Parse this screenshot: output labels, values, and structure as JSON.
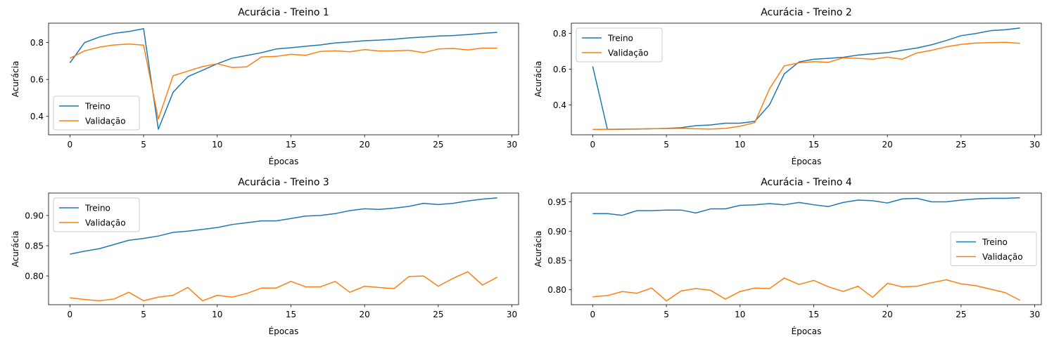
{
  "figure": {
    "colors": {
      "treino": "#1f77b4",
      "validacao": "#ff7f0e"
    }
  },
  "chart_data": [
    {
      "type": "line",
      "title": "Acurácia - Treino 1",
      "xlabel": "Épocas",
      "ylabel": "Acurácia",
      "xlim": [
        -1.45,
        30.45
      ],
      "ylim": [
        0.3,
        0.905
      ],
      "xticks": [
        0,
        5,
        10,
        15,
        20,
        25,
        30
      ],
      "yticks": [
        0.4,
        0.6,
        0.8
      ],
      "ytick_labels": [
        "0.4",
        "0.6",
        "0.8"
      ],
      "legend": "lower-left",
      "grid": false,
      "x": [
        0,
        1,
        2,
        3,
        4,
        5,
        6,
        7,
        8,
        9,
        10,
        11,
        12,
        13,
        14,
        15,
        16,
        17,
        18,
        19,
        20,
        21,
        22,
        23,
        24,
        25,
        26,
        27,
        28,
        29
      ],
      "series": [
        {
          "name": "Treino",
          "color": "#1f77b4",
          "values": [
            0.69,
            0.8,
            0.83,
            0.85,
            0.86,
            0.875,
            0.33,
            0.53,
            0.615,
            0.65,
            0.685,
            0.715,
            0.73,
            0.745,
            0.765,
            0.772,
            0.78,
            0.787,
            0.798,
            0.803,
            0.81,
            0.813,
            0.818,
            0.825,
            0.83,
            0.835,
            0.838,
            0.843,
            0.85,
            0.855
          ]
        },
        {
          "name": "Validação",
          "color": "#ff7f0e",
          "values": [
            0.715,
            0.755,
            0.775,
            0.787,
            0.792,
            0.786,
            0.385,
            0.62,
            0.645,
            0.67,
            0.685,
            0.665,
            0.668,
            0.722,
            0.725,
            0.736,
            0.731,
            0.752,
            0.755,
            0.75,
            0.762,
            0.754,
            0.755,
            0.758,
            0.745,
            0.765,
            0.768,
            0.76,
            0.77,
            0.77
          ]
        }
      ]
    },
    {
      "type": "line",
      "title": "Acurácia - Treino 2",
      "xlabel": "Épocas",
      "ylabel": "Acurácia",
      "xlim": [
        -1.45,
        30.45
      ],
      "ylim": [
        0.232,
        0.857
      ],
      "xticks": [
        0,
        5,
        10,
        15,
        20,
        25,
        30
      ],
      "yticks": [
        0.4,
        0.6,
        0.8
      ],
      "ytick_labels": [
        "0.4",
        "0.6",
        "0.8"
      ],
      "legend": "upper-left",
      "grid": false,
      "x": [
        0,
        1,
        2,
        3,
        4,
        5,
        6,
        7,
        8,
        9,
        10,
        11,
        12,
        13,
        14,
        15,
        16,
        17,
        18,
        19,
        20,
        21,
        22,
        23,
        24,
        25,
        26,
        27,
        28,
        29
      ],
      "series": [
        {
          "name": "Treino",
          "color": "#1f77b4",
          "values": [
            0.615,
            0.262,
            0.263,
            0.264,
            0.266,
            0.268,
            0.272,
            0.283,
            0.287,
            0.297,
            0.297,
            0.307,
            0.4,
            0.573,
            0.64,
            0.655,
            0.66,
            0.666,
            0.678,
            0.686,
            0.692,
            0.705,
            0.718,
            0.736,
            0.76,
            0.787,
            0.799,
            0.815,
            0.82,
            0.83
          ]
        },
        {
          "name": "Validação",
          "color": "#ff7f0e",
          "values": [
            0.262,
            0.263,
            0.264,
            0.265,
            0.266,
            0.267,
            0.268,
            0.266,
            0.264,
            0.268,
            0.28,
            0.3,
            0.49,
            0.618,
            0.635,
            0.642,
            0.638,
            0.663,
            0.66,
            0.655,
            0.667,
            0.655,
            0.69,
            0.705,
            0.725,
            0.738,
            0.746,
            0.748,
            0.75,
            0.744
          ]
        }
      ]
    },
    {
      "type": "line",
      "title": "Acurácia - Treino 3",
      "xlabel": "Épocas",
      "ylabel": "Acurácia",
      "xlim": [
        -1.45,
        30.45
      ],
      "ylim": [
        0.7525,
        0.937
      ],
      "xticks": [
        0,
        5,
        10,
        15,
        20,
        25,
        30
      ],
      "yticks": [
        0.8,
        0.85,
        0.9
      ],
      "ytick_labels": [
        "0.80",
        "0.85",
        "0.90"
      ],
      "legend": "upper-left",
      "grid": false,
      "x": [
        0,
        1,
        2,
        3,
        4,
        5,
        6,
        7,
        8,
        9,
        10,
        11,
        12,
        13,
        14,
        15,
        16,
        17,
        18,
        19,
        20,
        21,
        22,
        23,
        24,
        25,
        26,
        27,
        28,
        29
      ],
      "series": [
        {
          "name": "Treino",
          "color": "#1f77b4",
          "values": [
            0.836,
            0.841,
            0.845,
            0.852,
            0.859,
            0.862,
            0.866,
            0.872,
            0.874,
            0.877,
            0.88,
            0.885,
            0.888,
            0.891,
            0.891,
            0.895,
            0.899,
            0.9,
            0.903,
            0.908,
            0.911,
            0.91,
            0.912,
            0.915,
            0.92,
            0.918,
            0.92,
            0.924,
            0.927,
            0.929
          ]
        },
        {
          "name": "Validação",
          "color": "#ff7f0e",
          "values": [
            0.764,
            0.761,
            0.759,
            0.762,
            0.773,
            0.759,
            0.765,
            0.768,
            0.781,
            0.759,
            0.768,
            0.765,
            0.771,
            0.78,
            0.78,
            0.791,
            0.782,
            0.782,
            0.791,
            0.773,
            0.783,
            0.781,
            0.779,
            0.799,
            0.8,
            0.783,
            0.796,
            0.807,
            0.785,
            0.798
          ]
        }
      ]
    },
    {
      "type": "line",
      "title": "Acurácia - Treino 4",
      "xlabel": "Épocas",
      "ylabel": "Acurácia",
      "xlim": [
        -1.45,
        30.45
      ],
      "ylim": [
        0.7745,
        0.965
      ],
      "xticks": [
        0,
        5,
        10,
        15,
        20,
        25,
        30
      ],
      "yticks": [
        0.8,
        0.85,
        0.9,
        0.95
      ],
      "ytick_labels": [
        "0.80",
        "0.85",
        "0.90",
        "0.95"
      ],
      "legend": "center-right",
      "grid": false,
      "x": [
        0,
        1,
        2,
        3,
        4,
        5,
        6,
        7,
        8,
        9,
        10,
        11,
        12,
        13,
        14,
        15,
        16,
        17,
        18,
        19,
        20,
        21,
        22,
        23,
        24,
        25,
        26,
        27,
        28,
        29
      ],
      "series": [
        {
          "name": "Treino",
          "color": "#1f77b4",
          "values": [
            0.93,
            0.93,
            0.927,
            0.935,
            0.935,
            0.936,
            0.936,
            0.931,
            0.938,
            0.938,
            0.944,
            0.945,
            0.947,
            0.945,
            0.949,
            0.945,
            0.942,
            0.949,
            0.953,
            0.952,
            0.948,
            0.955,
            0.956,
            0.95,
            0.95,
            0.953,
            0.955,
            0.956,
            0.956,
            0.957
          ]
        },
        {
          "name": "Validação",
          "color": "#ff7f0e",
          "values": [
            0.788,
            0.79,
            0.797,
            0.794,
            0.803,
            0.781,
            0.798,
            0.802,
            0.799,
            0.784,
            0.797,
            0.803,
            0.802,
            0.82,
            0.809,
            0.816,
            0.805,
            0.797,
            0.806,
            0.787,
            0.811,
            0.805,
            0.806,
            0.812,
            0.817,
            0.81,
            0.807,
            0.801,
            0.795,
            0.782
          ]
        }
      ]
    }
  ]
}
